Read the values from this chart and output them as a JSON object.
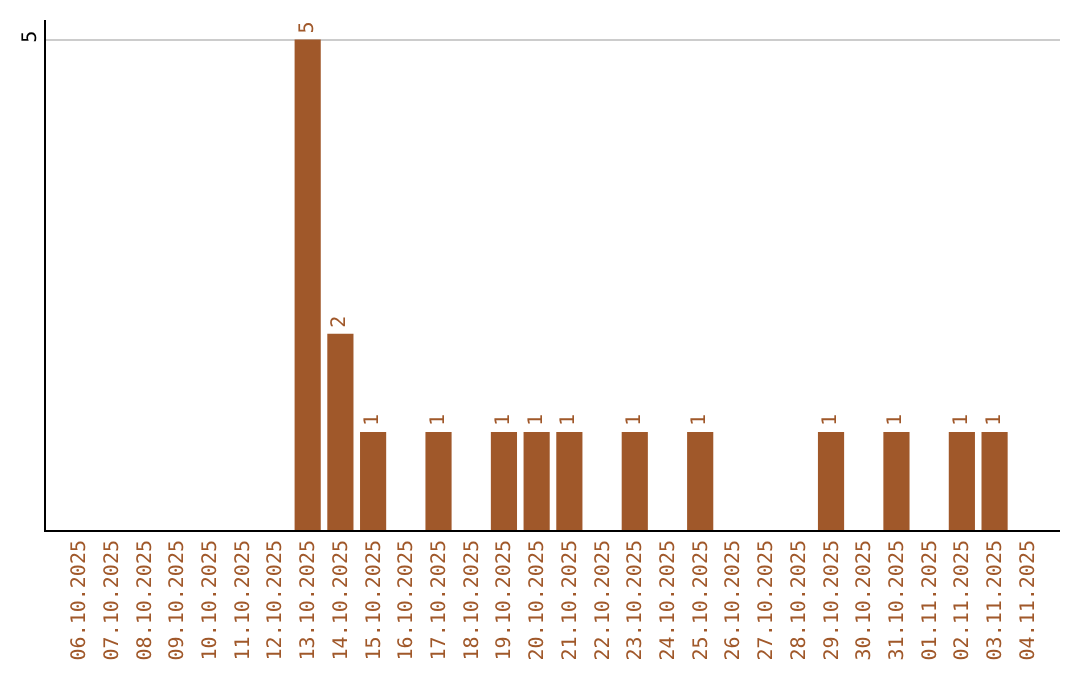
{
  "chart_data": {
    "type": "bar",
    "categories": [
      "06.10.2025",
      "07.10.2025",
      "08.10.2025",
      "09.10.2025",
      "10.10.2025",
      "11.10.2025",
      "12.10.2025",
      "13.10.2025",
      "14.10.2025",
      "15.10.2025",
      "16.10.2025",
      "17.10.2025",
      "18.10.2025",
      "19.10.2025",
      "20.10.2025",
      "21.10.2025",
      "22.10.2025",
      "23.10.2025",
      "24.10.2025",
      "25.10.2025",
      "26.10.2025",
      "27.10.2025",
      "28.10.2025",
      "29.10.2025",
      "30.10.2025",
      "31.10.2025",
      "01.11.2025",
      "02.11.2025",
      "03.11.2025",
      "04.11.2025"
    ],
    "values": [
      0,
      0,
      0,
      0,
      0,
      0,
      0,
      5,
      2,
      1,
      0,
      1,
      0,
      1,
      1,
      1,
      0,
      1,
      0,
      1,
      0,
      0,
      0,
      1,
      0,
      1,
      0,
      1,
      1,
      0
    ],
    "value_labels": [
      null,
      null,
      null,
      null,
      null,
      null,
      null,
      "5",
      "2",
      "1",
      null,
      "1",
      null,
      "1",
      "1",
      "1",
      null,
      "1",
      null,
      "1",
      null,
      null,
      null,
      "1",
      null,
      "1",
      null,
      "1",
      "1",
      null
    ],
    "color": "#a0582a",
    "ylim": [
      0,
      5.2
    ],
    "yticks": [
      5
    ],
    "grid": "y",
    "legend": false
  }
}
